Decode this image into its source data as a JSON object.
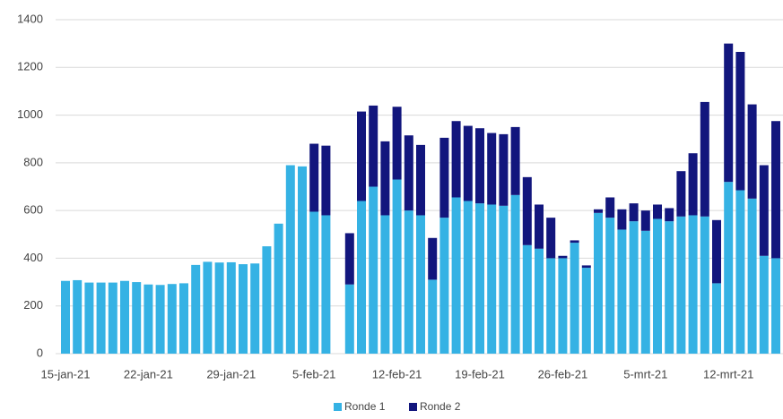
{
  "chart_data": {
    "type": "stacked_bar",
    "categories": [
      "15-jan-21",
      null,
      null,
      null,
      null,
      null,
      null,
      "22-jan-21",
      null,
      null,
      null,
      null,
      null,
      null,
      "29-jan-21",
      null,
      null,
      null,
      null,
      null,
      null,
      "5-feb-21",
      null,
      null,
      null,
      null,
      null,
      null,
      "12-feb-21",
      null,
      null,
      null,
      null,
      null,
      null,
      "19-feb-21",
      null,
      null,
      null,
      null,
      null,
      null,
      "26-feb-21",
      null,
      null,
      null,
      null,
      null,
      null,
      "5-mrt-21",
      null,
      null,
      null,
      null,
      null,
      null,
      "12-mrt-21",
      null,
      null,
      null,
      null
    ],
    "series": [
      {
        "name": "Ronde 1",
        "color": "#35b2e4",
        "values": [
          305,
          308,
          298,
          298,
          298,
          305,
          300,
          290,
          288,
          292,
          295,
          372,
          385,
          382,
          383,
          375,
          378,
          450,
          545,
          790,
          785,
          595,
          580,
          null,
          290,
          640,
          700,
          580,
          730,
          600,
          580,
          310,
          570,
          655,
          640,
          630,
          625,
          620,
          665,
          455,
          440,
          400,
          400,
          465,
          360,
          590,
          570,
          520,
          555,
          515,
          565,
          555,
          575,
          580,
          575,
          295,
          720,
          685,
          650,
          410,
          400
        ]
      },
      {
        "name": "Ronde 2",
        "color": "#12167d",
        "values": [
          0,
          0,
          0,
          0,
          0,
          0,
          0,
          0,
          0,
          0,
          0,
          0,
          0,
          0,
          0,
          0,
          0,
          0,
          0,
          0,
          0,
          285,
          292,
          null,
          215,
          375,
          340,
          310,
          305,
          315,
          295,
          175,
          335,
          320,
          315,
          315,
          300,
          300,
          285,
          285,
          185,
          170,
          10,
          10,
          10,
          15,
          85,
          85,
          75,
          85,
          60,
          55,
          190,
          260,
          480,
          265,
          580,
          580,
          395,
          380,
          575
        ]
      }
    ],
    "ylim": [
      0,
      1400
    ],
    "yticks": [
      0,
      200,
      400,
      600,
      800,
      1000,
      1200,
      1400
    ],
    "grid": true
  }
}
